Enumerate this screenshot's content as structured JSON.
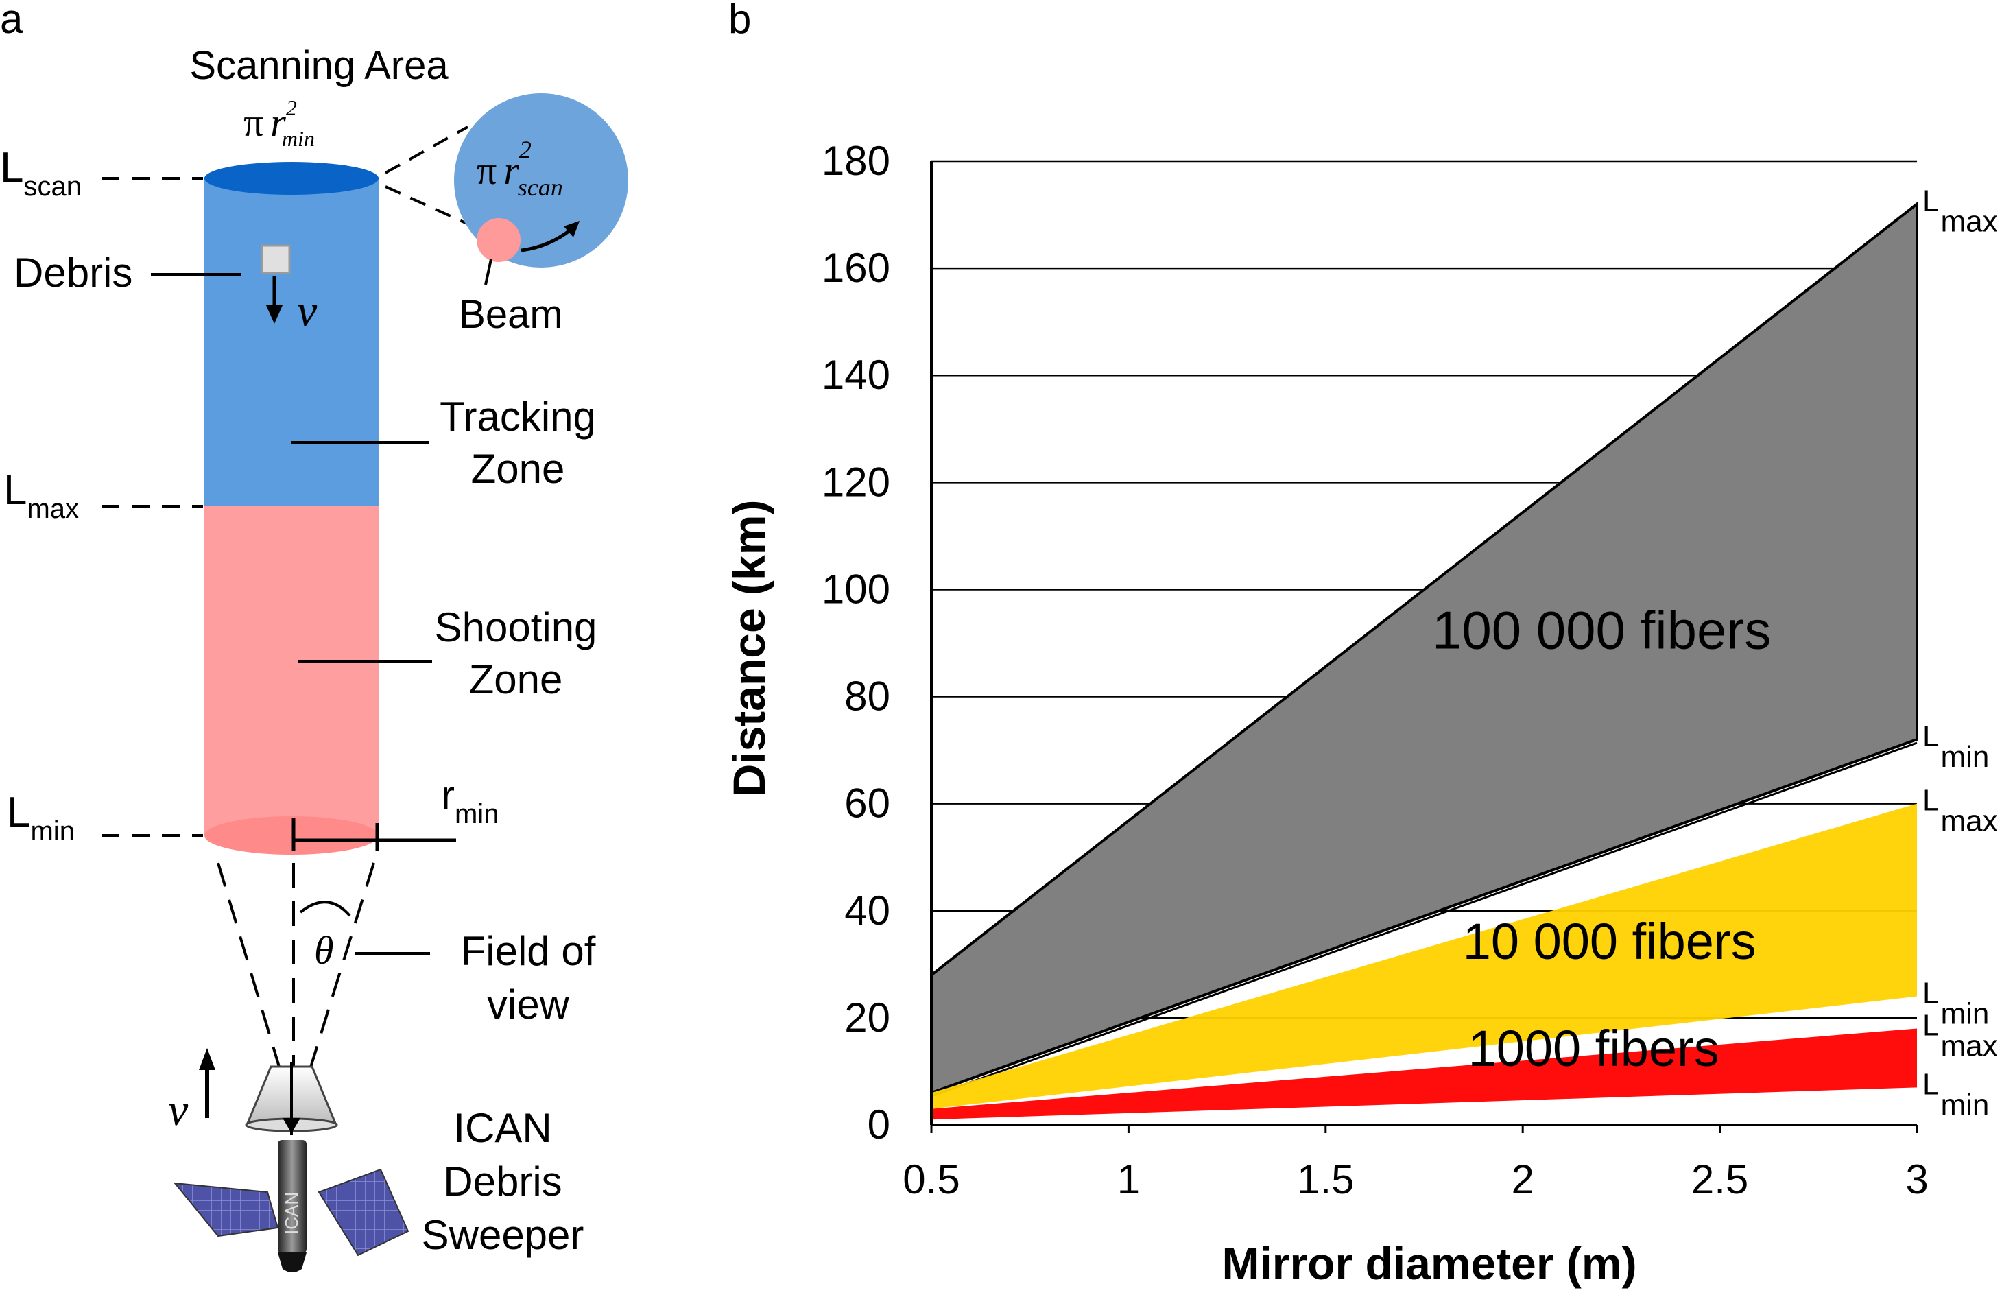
{
  "panel_a": {
    "panel_label": "a",
    "scanning_area_title": "Scanning Area",
    "area_symbol": {
      "pi": "π",
      "r": "r",
      "exp": "2",
      "sub": "min"
    },
    "inset_area_symbol": {
      "pi": "π",
      "r": "r",
      "exp": "2",
      "sub": "scan"
    },
    "levels": [
      {
        "main": "L",
        "sub": "scan"
      },
      {
        "main": "L",
        "sub": "max"
      },
      {
        "main": "L",
        "sub": "min"
      }
    ],
    "debris_label": "Debris",
    "velocity_symbol": "v",
    "beam_label": "Beam",
    "tracking_zone": [
      "Tracking",
      "Zone"
    ],
    "shooting_zone": [
      "Shooting",
      "Zone"
    ],
    "radius_label": {
      "main": "r",
      "sub": "min"
    },
    "theta_symbol": "θ",
    "field_of_view": [
      "Field of",
      "view"
    ],
    "satellite_label": [
      "ICAN",
      "Debris",
      "Sweeper"
    ],
    "satellite_body_text": "ICAN",
    "colors": {
      "tracking": "#5b9ddf",
      "shooting": "#ff9e9e",
      "top_ellipse": "#0a64c8",
      "inset_circle": "#6ea4dc",
      "beam_spot": "#ff9a9a"
    }
  },
  "panel_b": {
    "panel_label": "b",
    "chart_data": {
      "type": "area",
      "xlabel": "Mirror diameter (m)",
      "ylabel": "Distance (km)",
      "xlim": [
        0.5,
        3
      ],
      "ylim": [
        0,
        180
      ],
      "x_ticks": [
        "0.5",
        "1",
        "1.5",
        "2",
        "2.5",
        "3"
      ],
      "y_ticks": [
        "0",
        "20",
        "40",
        "60",
        "80",
        "100",
        "120",
        "140",
        "160",
        "180"
      ],
      "grid": "horizontal",
      "series": [
        {
          "name": "100 000 fibers",
          "color": "#808080",
          "x": [
            0.5,
            3
          ],
          "Lmin": [
            6,
            72
          ],
          "Lmax": [
            28,
            172
          ]
        },
        {
          "name": "10 000 fibers",
          "color": "#ffd200",
          "x": [
            0.5,
            3
          ],
          "Lmin": [
            3,
            24
          ],
          "Lmax": [
            6,
            60
          ]
        },
        {
          "name": "1000 fibers",
          "color": "#ff0000",
          "x": [
            0.5,
            3
          ],
          "Lmin": [
            1,
            7
          ],
          "Lmax": [
            3,
            18
          ]
        }
      ],
      "edge_labels": [
        {
          "main": "L",
          "sub": "max"
        },
        {
          "main": "L",
          "sub": "min"
        },
        {
          "main": "L",
          "sub": "max"
        },
        {
          "main": "L",
          "sub": "min"
        },
        {
          "main": "L",
          "sub": "max"
        },
        {
          "main": "L",
          "sub": "min"
        }
      ]
    }
  }
}
